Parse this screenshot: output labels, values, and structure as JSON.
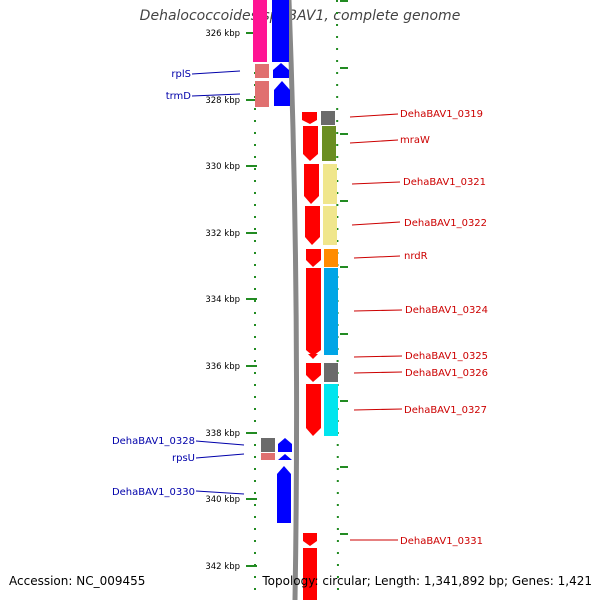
{
  "title": "Dehalococcoides sp. BAV1, complete genome",
  "footer": {
    "accession": "Accession: NC_009455",
    "summary": "Topology: circular; Length: 1,341,892 bp; Genes: 1,421"
  },
  "scale": {
    "unit": "kbp",
    "ticks": [
      "326 kbp",
      "328 kbp",
      "330 kbp",
      "332 kbp",
      "334 kbp",
      "336 kbp",
      "338 kbp",
      "340 kbp",
      "342 kbp"
    ]
  },
  "strands": {
    "minus": {
      "color": "#0000ff"
    },
    "plus": {
      "color": "#ff0000"
    }
  },
  "genes": [
    {
      "name": "rplS",
      "strand": "minus",
      "label_color": "#0000aa"
    },
    {
      "name": "trmD",
      "strand": "minus",
      "label_color": "#0000aa"
    },
    {
      "name": "DehaBAV1_0319",
      "strand": "plus",
      "label_color": "#cc0000"
    },
    {
      "name": "mraW",
      "strand": "plus",
      "label_color": "#cc0000"
    },
    {
      "name": "DehaBAV1_0321",
      "strand": "plus",
      "label_color": "#cc0000"
    },
    {
      "name": "DehaBAV1_0322",
      "strand": "plus",
      "label_color": "#cc0000"
    },
    {
      "name": "nrdR",
      "strand": "plus",
      "label_color": "#cc0000"
    },
    {
      "name": "DehaBAV1_0324",
      "strand": "plus",
      "label_color": "#cc0000"
    },
    {
      "name": "DehaBAV1_0325",
      "strand": "plus",
      "label_color": "#cc0000"
    },
    {
      "name": "DehaBAV1_0326",
      "strand": "plus",
      "label_color": "#cc0000"
    },
    {
      "name": "DehaBAV1_0327",
      "strand": "plus",
      "label_color": "#cc0000"
    },
    {
      "name": "DehaBAV1_0328",
      "strand": "minus",
      "label_color": "#0000aa"
    },
    {
      "name": "rpsU",
      "strand": "minus",
      "label_color": "#0000aa"
    },
    {
      "name": "DehaBAV1_0330",
      "strand": "minus",
      "label_color": "#0000aa"
    },
    {
      "name": "DehaBAV1_0331",
      "strand": "plus",
      "label_color": "#cc0000"
    }
  ]
}
